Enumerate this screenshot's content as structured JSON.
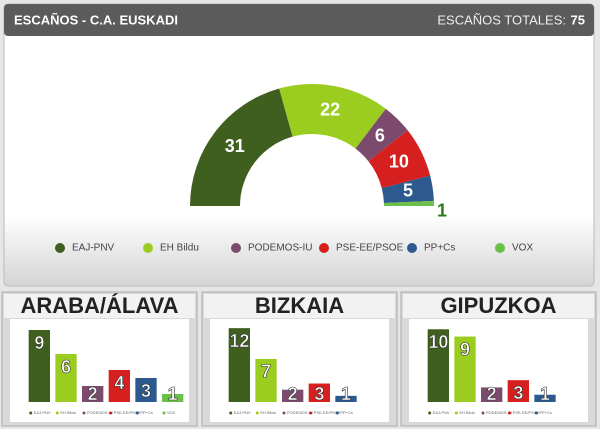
{
  "chart_data": [
    {
      "type": "half-donut",
      "title": "ESCAÑOS - C.A. EUSKADI",
      "total_label": "ESCAÑOS TOTALES:",
      "total": 75,
      "categories": [
        "EAJ-PNV",
        "EH Bildu",
        "PODEMOS-IU",
        "PSE-EE/PSOE",
        "PP+Cs",
        "VOX"
      ],
      "values": [
        31,
        22,
        6,
        10,
        5,
        1
      ],
      "colors": [
        "#3f5f1f",
        "#9acd1f",
        "#7b4a6d",
        "#d61f1f",
        "#2c5a8f",
        "#6cc04a"
      ]
    },
    {
      "type": "bar",
      "title": "ARABA/ÁLAVA",
      "categories": [
        "EAJ-PNV",
        "EH Bildu",
        "PODEMOS-IU",
        "PSE-EE/PSOE",
        "PP+Cs",
        "VOX"
      ],
      "values": [
        9,
        6,
        2,
        4,
        3,
        1
      ],
      "ylim": [
        0,
        10
      ],
      "colors": [
        "#3f5f1f",
        "#9acd1f",
        "#7b4a6d",
        "#d61f1f",
        "#2c5a8f",
        "#6cc04a"
      ]
    },
    {
      "type": "bar",
      "title": "BIZKAIA",
      "categories": [
        "EAJ-PNV",
        "EH Bildu",
        "PODEMOS-IU",
        "PSE-EE/PSOE",
        "PP+Cs"
      ],
      "values": [
        12,
        7,
        2,
        3,
        1
      ],
      "ylim": [
        0,
        13
      ],
      "colors": [
        "#3f5f1f",
        "#9acd1f",
        "#7b4a6d",
        "#d61f1f",
        "#2c5a8f"
      ]
    },
    {
      "type": "bar",
      "title": "GIPUZKOA",
      "categories": [
        "EAJ-PNV",
        "EH Bildu",
        "PODEMOS-IU",
        "PSE-EE/PSOE",
        "PP+Cs"
      ],
      "values": [
        10,
        9,
        2,
        3,
        1
      ],
      "ylim": [
        0,
        11
      ],
      "colors": [
        "#3f5f1f",
        "#9acd1f",
        "#7b4a6d",
        "#d61f1f",
        "#2c5a8f"
      ]
    }
  ]
}
